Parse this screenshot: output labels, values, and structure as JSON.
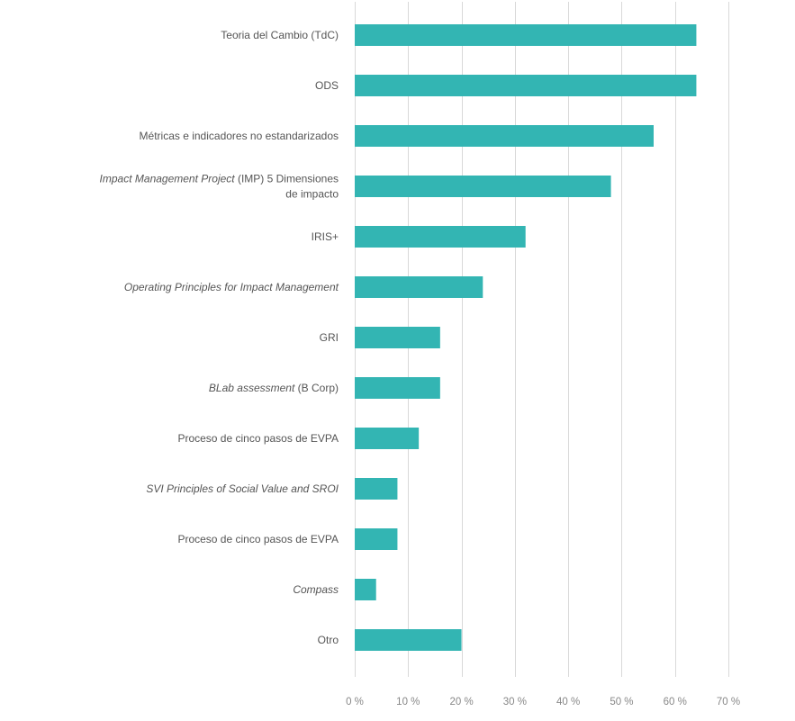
{
  "chart_data": {
    "type": "bar",
    "orientation": "horizontal",
    "title": "",
    "xlabel": "",
    "ylabel": "",
    "xlim": [
      0,
      70
    ],
    "grid": true,
    "bar_color": "#33b5b3",
    "categories": [
      {
        "label": [
          {
            "text": "Teoria del Cambio (TdC)"
          }
        ],
        "value": 64
      },
      {
        "label": [
          {
            "text": "ODS"
          }
        ],
        "value": 64
      },
      {
        "label": [
          {
            "text": "Métricas e indicadores no estandarizados"
          }
        ],
        "value": 56
      },
      {
        "label": [
          {
            "text": "Impact Management Project",
            "italic": true
          },
          {
            "text": " (IMP) 5 Dimensiones"
          },
          {
            "text": "de impacto",
            "newline": true
          }
        ],
        "value": 48
      },
      {
        "label": [
          {
            "text": "IRIS+"
          }
        ],
        "value": 32
      },
      {
        "label": [
          {
            "text": "Operating Principles for Impact Management",
            "italic": true
          }
        ],
        "value": 24
      },
      {
        "label": [
          {
            "text": "GRI"
          }
        ],
        "value": 16
      },
      {
        "label": [
          {
            "text": "BLab assessment",
            "italic": true
          },
          {
            "text": " (B Corp)"
          }
        ],
        "value": 16
      },
      {
        "label": [
          {
            "text": "Proceso de cinco pasos de EVPA"
          }
        ],
        "value": 12
      },
      {
        "label": [
          {
            "text": "SVI Principles of Social Value and SROI",
            "italic": true
          }
        ],
        "value": 8
      },
      {
        "label": [
          {
            "text": "Proceso de cinco pasos de EVPA"
          }
        ],
        "value": 8
      },
      {
        "label": [
          {
            "text": "Compass",
            "italic": true
          }
        ],
        "value": 4
      },
      {
        "label": [
          {
            "text": "Otro"
          }
        ],
        "value": 20
      }
    ],
    "ticks": [
      {
        "value": 0,
        "label": "0 %"
      },
      {
        "value": 10,
        "label": "10 %"
      },
      {
        "value": 20,
        "label": "20 %"
      },
      {
        "value": 30,
        "label": "30 %"
      },
      {
        "value": 40,
        "label": "40 %"
      },
      {
        "value": 50,
        "label": "50 %"
      },
      {
        "value": 60,
        "label": "60 %"
      },
      {
        "value": 70,
        "label": "70 %"
      }
    ]
  }
}
